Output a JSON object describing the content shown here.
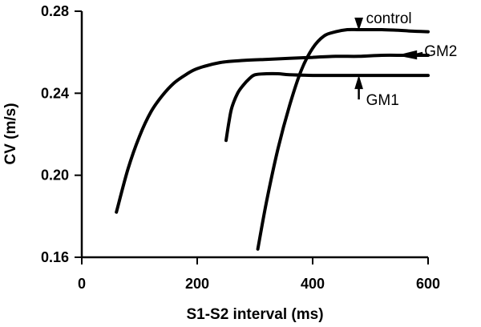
{
  "chart_data": {
    "type": "line",
    "title": "",
    "xlabel": "S1-S2 interval (ms)",
    "ylabel": "CV (m/s)",
    "xlim": [
      0,
      600
    ],
    "ylim": [
      0.16,
      0.28
    ],
    "xticks": [
      0,
      200,
      400,
      600
    ],
    "xtick_labels": [
      "0",
      "200",
      "400",
      "600"
    ],
    "yticks": [
      0.16,
      0.2,
      0.24,
      0.28
    ],
    "ytick_labels": [
      "0.16",
      "0.20",
      "0.24",
      "0.28"
    ],
    "grid": false,
    "legend": "none",
    "series": [
      {
        "name": "control",
        "x": [
          305,
          320,
          340,
          360,
          380,
          400,
          420,
          440,
          460,
          480,
          500,
          520,
          540,
          560,
          580,
          600
        ],
        "y": [
          0.164,
          0.187,
          0.213,
          0.234,
          0.251,
          0.262,
          0.268,
          0.27,
          0.271,
          0.271,
          0.271,
          0.271,
          0.2708,
          0.2705,
          0.2702,
          0.27
        ]
      },
      {
        "name": "GM2",
        "x": [
          60,
          80,
          100,
          120,
          140,
          160,
          180,
          200,
          240,
          280,
          320,
          360,
          400,
          440,
          480,
          520,
          560,
          600
        ],
        "y": [
          0.182,
          0.203,
          0.219,
          0.231,
          0.239,
          0.245,
          0.249,
          0.252,
          0.255,
          0.256,
          0.2565,
          0.257,
          0.2575,
          0.258,
          0.258,
          0.2585,
          0.2585,
          0.2585
        ]
      },
      {
        "name": "GM1",
        "x": [
          250,
          255,
          260,
          270,
          280,
          290,
          300,
          320,
          340,
          360,
          400,
          440,
          480,
          520,
          560,
          600
        ],
        "y": [
          0.217,
          0.226,
          0.233,
          0.24,
          0.244,
          0.247,
          0.249,
          0.2495,
          0.2495,
          0.249,
          0.2487,
          0.2487,
          0.2487,
          0.2487,
          0.2487,
          0.2487
        ]
      }
    ],
    "annotations": [
      {
        "label": "control",
        "series": "control",
        "arrow_at": [
          480,
          0.271
        ],
        "direction": "down"
      },
      {
        "label": "GM2",
        "series": "GM2",
        "arrow_at": [
          560,
          0.2585
        ],
        "direction": "left"
      },
      {
        "label": "GM1",
        "series": "GM1",
        "arrow_at": [
          480,
          0.2487
        ],
        "direction": "up"
      }
    ]
  }
}
